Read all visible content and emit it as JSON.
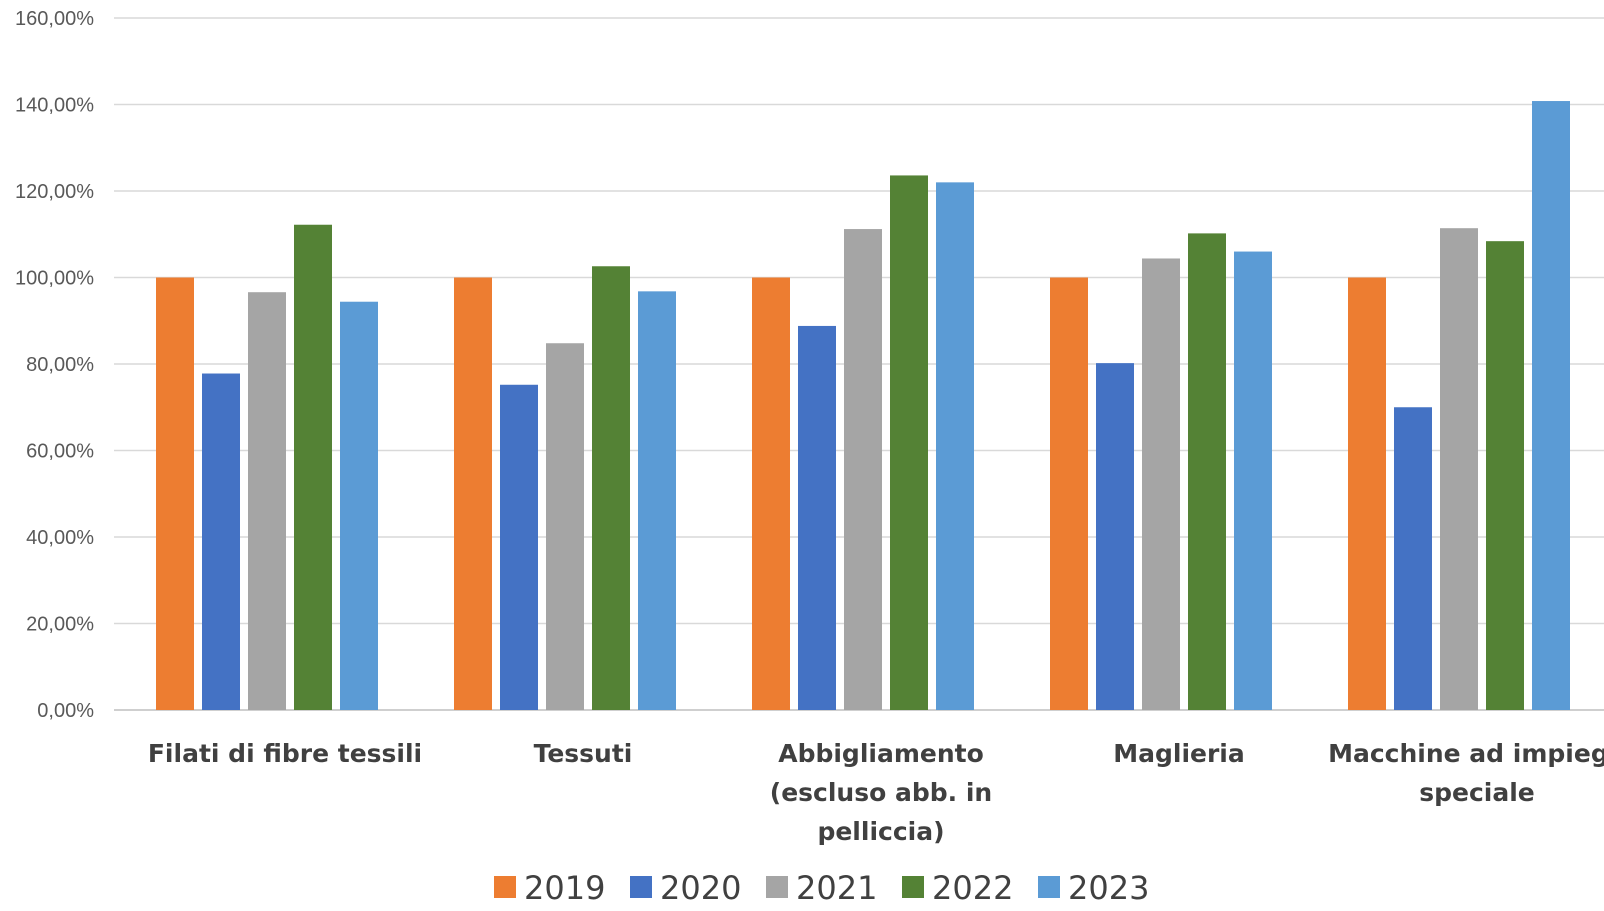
{
  "chart_data": {
    "type": "bar",
    "title": "",
    "xlabel": "",
    "ylabel": "",
    "ylim": [
      0,
      160
    ],
    "ytick_step": 20,
    "ytick_labels": [
      "0,00%",
      "20,00%",
      "40,00%",
      "60,00%",
      "80,00%",
      "100,00%",
      "120,00%",
      "140,00%",
      "160,00%"
    ],
    "grid": true,
    "legend_position": "bottom",
    "categories": [
      [
        "Filati di fibre tessili"
      ],
      [
        "Tessuti"
      ],
      [
        "Abbigliamento",
        "(escluso abb. in",
        "pelliccia)"
      ],
      [
        "Maglieria"
      ],
      [
        "Macchine ad impiego",
        "speciale"
      ]
    ],
    "series": [
      {
        "name": "2019",
        "color": "#ED7D31",
        "values": [
          100.0,
          100.0,
          100.0,
          100.0,
          100.0
        ]
      },
      {
        "name": "2020",
        "color": "#4472C4",
        "values": [
          77.8,
          75.2,
          88.8,
          80.2,
          70.0
        ]
      },
      {
        "name": "2021",
        "color": "#A5A5A5",
        "values": [
          96.6,
          84.8,
          111.2,
          104.4,
          111.4
        ]
      },
      {
        "name": "2022",
        "color": "#548235",
        "values": [
          112.2,
          102.6,
          123.6,
          110.2,
          108.4
        ]
      },
      {
        "name": "2023",
        "color": "#5B9BD5",
        "values": [
          94.4,
          96.8,
          122.0,
          106.0,
          140.8
        ]
      }
    ]
  }
}
